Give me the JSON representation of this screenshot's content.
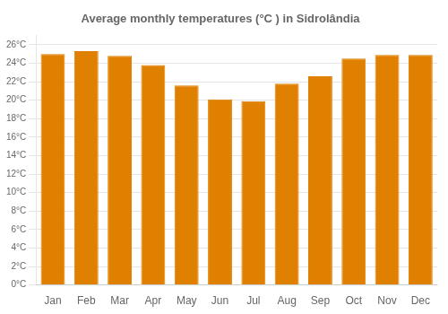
{
  "chart_data": {
    "type": "bar",
    "title": "Average monthly temperatures (°C ) in Sidrolândia",
    "categories": [
      "Jan",
      "Feb",
      "Mar",
      "Apr",
      "May",
      "Jun",
      "Jul",
      "Aug",
      "Sep",
      "Oct",
      "Nov",
      "Dec"
    ],
    "values": [
      25.0,
      25.3,
      24.8,
      23.8,
      21.6,
      20.1,
      19.9,
      21.8,
      22.6,
      24.5,
      24.9,
      24.9
    ],
    "color": "#E08000",
    "ylim": [
      0,
      27
    ],
    "yticks": [
      {
        "value": 0,
        "label": "0°C"
      },
      {
        "value": 2,
        "label": "2°C"
      },
      {
        "value": 4,
        "label": "4°C"
      },
      {
        "value": 6,
        "label": "6°C"
      },
      {
        "value": 8,
        "label": "8°C"
      },
      {
        "value": 10,
        "label": "10°C"
      },
      {
        "value": 12,
        "label": "12°C"
      },
      {
        "value": 14,
        "label": "14°C"
      },
      {
        "value": 16,
        "label": "16°C"
      },
      {
        "value": 18,
        "label": "18°C"
      },
      {
        "value": 20,
        "label": "20°C"
      },
      {
        "value": 22,
        "label": "22°C"
      },
      {
        "value": 24,
        "label": "24°C"
      },
      {
        "value": 26,
        "label": "26°C"
      }
    ],
    "grid": true
  }
}
